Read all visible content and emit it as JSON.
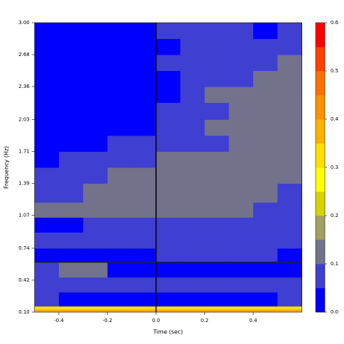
{
  "chart_data": {
    "type": "heatmap",
    "xlabel": "Time (sec)",
    "ylabel": "Frequency (Hz)",
    "xlim": [
      -0.5,
      0.6
    ],
    "ylim": [
      0.1,
      3.0
    ],
    "xticks": [
      -0.4,
      -0.2,
      {
        "value": 0,
        "label": "0.0"
      },
      0.2,
      0.4
    ],
    "yticks": [
      {
        "value": 0.1,
        "label": "0.10"
      },
      0.42,
      0.74,
      1.07,
      1.39,
      1.71,
      2.03,
      2.36,
      2.68,
      {
        "value": 3,
        "label": "3.00"
      }
    ],
    "x_edges": [
      -0.5,
      -0.4,
      -0.3,
      -0.2,
      -0.1,
      0,
      0.1,
      0.2,
      0.3,
      0.4,
      0.5,
      0.6
    ],
    "y_edges": [
      0.1,
      0.13,
      0.16,
      0.3,
      0.45,
      0.6,
      0.74,
      0.9,
      1.05,
      1.2,
      1.39,
      1.55,
      1.71,
      1.87,
      2.03,
      2.2,
      2.36,
      2.52,
      2.68,
      2.84,
      3.0
    ],
    "z": [
      [
        0.37,
        0.37,
        0.37,
        0.37,
        0.37,
        0.37,
        0.37,
        0.37,
        0.37,
        0.37,
        0.37
      ],
      [
        0.32,
        0.32,
        0.32,
        0.32,
        0.32,
        0.32,
        0.32,
        0.32,
        0.32,
        0.32,
        0.32
      ],
      [
        0.08,
        0.03,
        0.03,
        0.03,
        0.03,
        0.03,
        0.03,
        0.03,
        0.03,
        0.03,
        0.08
      ],
      [
        0.08,
        0.08,
        0.08,
        0.08,
        0.08,
        0.08,
        0.08,
        0.08,
        0.08,
        0.08,
        0.08
      ],
      [
        0.08,
        0.12,
        0.12,
        0.03,
        0.03,
        0.03,
        0.03,
        0.03,
        0.03,
        0.03,
        0.03
      ],
      [
        0.03,
        0.03,
        0.03,
        0.03,
        0.03,
        0.08,
        0.08,
        0.08,
        0.08,
        0.08,
        0.03
      ],
      [
        0.08,
        0.08,
        0.08,
        0.08,
        0.08,
        0.08,
        0.08,
        0.08,
        0.08,
        0.08,
        0.08
      ],
      [
        0.03,
        0.03,
        0.08,
        0.08,
        0.08,
        0.08,
        0.08,
        0.08,
        0.08,
        0.08,
        0.08
      ],
      [
        0.12,
        0.12,
        0.12,
        0.12,
        0.12,
        0.12,
        0.12,
        0.12,
        0.12,
        0.08,
        0.08
      ],
      [
        0.08,
        0.08,
        0.12,
        0.12,
        0.12,
        0.12,
        0.12,
        0.12,
        0.12,
        0.12,
        0.08
      ],
      [
        0.08,
        0.08,
        0.08,
        0.12,
        0.12,
        0.12,
        0.12,
        0.12,
        0.12,
        0.12,
        0.12
      ],
      [
        0.03,
        0.08,
        0.08,
        0.08,
        0.08,
        0.12,
        0.12,
        0.12,
        0.12,
        0.12,
        0.12
      ],
      [
        0.03,
        0.03,
        0.03,
        0.08,
        0.08,
        0.08,
        0.08,
        0.08,
        0.12,
        0.12,
        0.12
      ],
      [
        0.03,
        0.03,
        0.03,
        0.03,
        0.03,
        0.08,
        0.08,
        0.12,
        0.12,
        0.12,
        0.12
      ],
      [
        0.03,
        0.03,
        0.03,
        0.03,
        0.03,
        0.08,
        0.08,
        0.08,
        0.12,
        0.12,
        0.12
      ],
      [
        0.03,
        0.03,
        0.03,
        0.03,
        0.03,
        0.03,
        0.08,
        0.12,
        0.12,
        0.12,
        0.12
      ],
      [
        0.03,
        0.03,
        0.03,
        0.03,
        0.03,
        0.03,
        0.08,
        0.08,
        0.08,
        0.12,
        0.12
      ],
      [
        0.03,
        0.03,
        0.03,
        0.03,
        0.03,
        0.08,
        0.08,
        0.08,
        0.08,
        0.08,
        0.12
      ],
      [
        0.03,
        0.03,
        0.03,
        0.03,
        0.03,
        0.03,
        0.08,
        0.08,
        0.08,
        0.08,
        0.08
      ],
      [
        0.03,
        0.03,
        0.03,
        0.03,
        0.03,
        0.08,
        0.08,
        0.08,
        0.08,
        0.03,
        0.08
      ]
    ],
    "vline": 0,
    "hline": 0.6,
    "colorbar": {
      "levels": [
        0,
        0.05,
        0.1,
        0.15,
        0.2,
        0.25,
        0.3,
        0.35,
        0.4,
        0.45,
        0.5,
        0.55,
        0.6
      ],
      "colors": [
        "#0000ff",
        "#3f3fd2",
        "#72728c",
        "#a0a060",
        "#d4d400",
        "#ffff00",
        "#ffde00",
        "#ffb000",
        "#ff9000",
        "#ff7000",
        "#ff4000",
        "#ff0000"
      ],
      "ticks": [
        {
          "value": 0,
          "label": "0.0"
        },
        0.1,
        0.2,
        0.3,
        0.4,
        0.5,
        0.6
      ]
    }
  }
}
